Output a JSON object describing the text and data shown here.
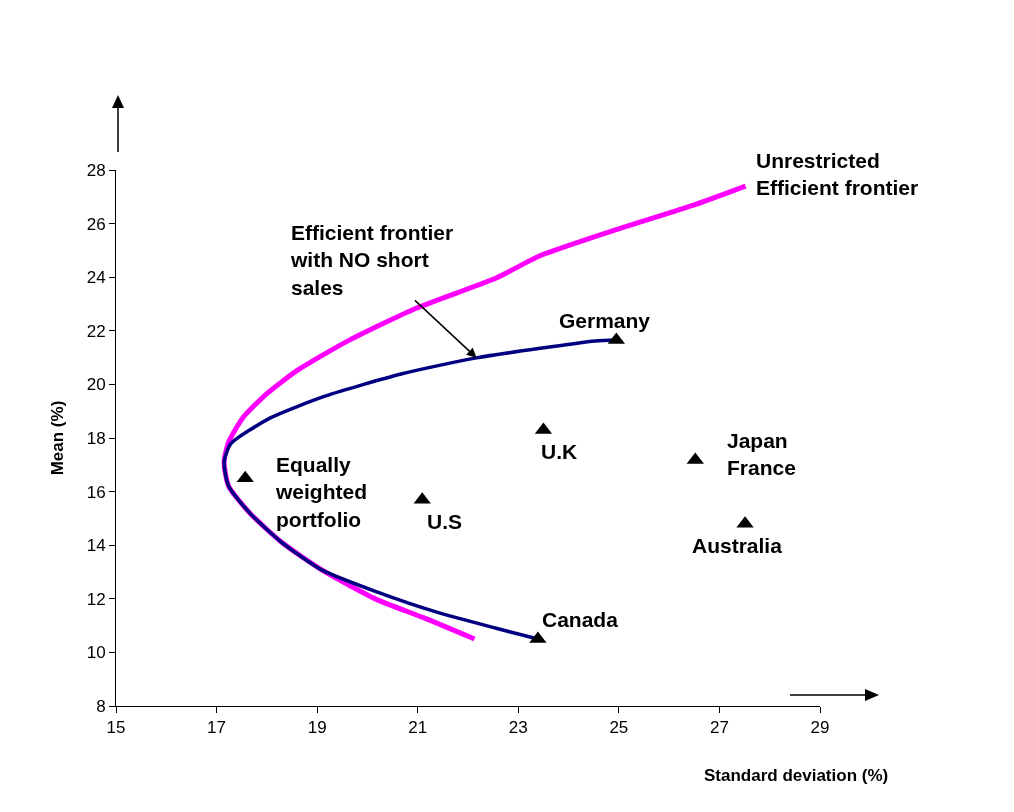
{
  "chart_data": {
    "type": "line",
    "xlabel": "Standard deviation (%)",
    "ylabel": "Mean (%)",
    "xlim": [
      15,
      29
    ],
    "ylim": [
      8,
      28
    ],
    "xticks": [
      15,
      17,
      19,
      21,
      23,
      25,
      27,
      29
    ],
    "yticks": [
      8,
      10,
      12,
      14,
      16,
      18,
      20,
      22,
      24,
      26,
      28
    ],
    "grid": false,
    "series": [
      {
        "color": "#ff00ff",
        "x": [
          22.13,
          21.14,
          20.2,
          19.1,
          18.3,
          17.68,
          17.24,
          17.15,
          17.24,
          17.52,
          17.99,
          18.62,
          19.65,
          20.98,
          22.56,
          23.43,
          24.92,
          26.5,
          27.52
        ],
        "values": [
          10.5,
          11.28,
          11.96,
          13.07,
          14.1,
          15.16,
          16.2,
          17.1,
          17.85,
          18.75,
          19.64,
          20.54,
          21.66,
          22.85,
          23.97,
          24.8,
          25.76,
          26.7,
          27.4
        ]
      },
      {
        "color": "#000080",
        "x": [
          23.39,
          22.56,
          21.38,
          20.2,
          19.1,
          18.3,
          17.68,
          17.24,
          17.15,
          17.28,
          18.07,
          19.17,
          20.67,
          22.17,
          24.53,
          24.95
        ],
        "values": [
          10.5,
          10.9,
          11.5,
          12.25,
          13.07,
          14.1,
          15.16,
          16.2,
          17.1,
          17.78,
          18.75,
          19.57,
          20.39,
          20.99,
          21.62,
          21.66
        ]
      },
      {
        "type": "scatter",
        "color": "#000000",
        "marker": "triangle",
        "x": [
          17.57,
          21.09,
          23.5,
          23.39,
          24.95,
          26.52,
          27.51
        ],
        "values": [
          16.5,
          15.7,
          18.3,
          10.5,
          21.66,
          17.18,
          14.8
        ]
      }
    ],
    "annotations": [
      {
        "text": "Unrestricted\nEfficient frontier",
        "x": 27.52,
        "y": 27.4
      },
      {
        "text": "Efficient frontier\nwith NO short\nsales",
        "x": 22.17,
        "y": 20.99
      },
      {
        "text": "Equally\nweighted\nportfolio",
        "x": 17.57,
        "y": 16.5
      },
      {
        "text": "U.S",
        "x": 21.09,
        "y": 15.7
      },
      {
        "text": "U.K",
        "x": 23.5,
        "y": 18.3
      },
      {
        "text": "Canada",
        "x": 23.39,
        "y": 10.5
      },
      {
        "text": "Germany",
        "x": 24.95,
        "y": 21.66
      },
      {
        "text": "Japan\nFrance",
        "x": 26.52,
        "y": 17.18
      },
      {
        "text": "Australia",
        "x": 27.51,
        "y": 14.8
      }
    ]
  }
}
